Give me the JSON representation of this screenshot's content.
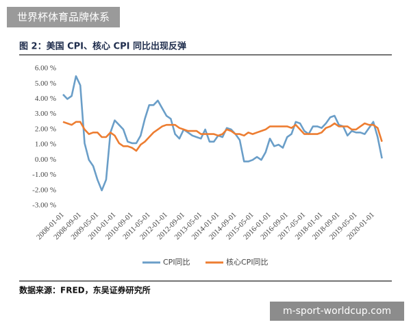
{
  "banner": "世界杯体育品牌体系",
  "watermark": "m-sport-worldcup.com",
  "chart_data": {
    "type": "line",
    "title": "图 2：美国 CPI、核心 CPI 同比出现反弹",
    "source": "数据来源：FRED，东吴证券研究所",
    "categories": [
      "2008-01-01",
      null,
      null,
      null,
      "2008-09-01",
      null,
      null,
      null,
      "2009-05-01",
      null,
      null,
      null,
      "2010-01-01",
      null,
      null,
      null,
      "2010-09-01",
      null,
      null,
      null,
      "2011-05-01",
      null,
      null,
      null,
      "2012-01-01",
      null,
      null,
      null,
      "2012-09-01",
      null,
      null,
      null,
      "2013-05-01",
      null,
      null,
      null,
      "2014-01-01",
      null,
      null,
      null,
      "2014-09-01",
      null,
      null,
      null,
      "2015-05-01",
      null,
      null,
      null,
      "2016-01-01",
      null,
      null,
      null,
      "2016-09-01",
      null,
      null,
      null,
      "2017-05-01",
      null,
      null,
      null,
      "2018-01-01",
      null,
      null,
      null,
      "2018-09-01",
      null,
      null,
      null,
      "2019-05-01",
      null,
      null,
      null,
      "2020-01-01",
      null,
      null
    ],
    "series": [
      {
        "name": "CPI同比",
        "color": "#6a9ec8",
        "values": [
          4.3,
          4.0,
          4.2,
          5.5,
          4.9,
          1.1,
          0.0,
          -0.4,
          -1.3,
          -2.0,
          -1.3,
          1.8,
          2.6,
          2.3,
          2.0,
          1.2,
          1.1,
          1.1,
          1.6,
          2.7,
          3.6,
          3.6,
          3.9,
          3.4,
          2.9,
          2.7,
          1.7,
          1.4,
          2.0,
          1.8,
          1.6,
          1.5,
          1.4,
          2.0,
          1.2,
          1.2,
          1.6,
          1.5,
          2.1,
          2.0,
          1.7,
          1.3,
          -0.1,
          -0.1,
          0.0,
          0.2,
          0.0,
          0.5,
          1.4,
          0.9,
          1.0,
          0.8,
          1.5,
          1.7,
          2.5,
          2.4,
          1.9,
          1.7,
          2.2,
          2.2,
          2.1,
          2.4,
          2.8,
          2.9,
          2.3,
          2.2,
          1.6,
          1.9,
          1.8,
          1.8,
          1.7,
          2.1,
          2.5,
          1.5,
          0.1
        ]
      },
      {
        "name": "核心CPI同比",
        "color": "#ed7d31",
        "values": [
          2.5,
          2.4,
          2.3,
          2.5,
          2.5,
          2.0,
          1.7,
          1.8,
          1.8,
          1.5,
          1.5,
          1.8,
          1.6,
          1.1,
          0.9,
          0.9,
          0.8,
          0.6,
          1.0,
          1.2,
          1.5,
          1.8,
          2.0,
          2.2,
          2.3,
          2.3,
          2.3,
          2.1,
          2.0,
          1.9,
          1.9,
          1.9,
          1.7,
          1.7,
          1.7,
          1.7,
          1.6,
          1.7,
          2.0,
          1.9,
          1.7,
          1.7,
          1.6,
          1.8,
          1.7,
          1.8,
          1.9,
          2.0,
          2.2,
          2.2,
          2.2,
          2.2,
          2.2,
          2.1,
          2.3,
          2.0,
          1.7,
          1.7,
          1.7,
          1.7,
          1.8,
          2.1,
          2.2,
          2.4,
          2.2,
          2.2,
          2.2,
          2.0,
          2.0,
          2.2,
          2.4,
          2.3,
          2.3,
          2.1,
          1.2
        ]
      }
    ],
    "ylim": [
      -3,
      6
    ],
    "yticks": [
      {
        "value": -3,
        "label": "-3.00 %"
      },
      {
        "value": -2,
        "label": "-2.00 %"
      },
      {
        "value": -1,
        "label": "-1.00 %"
      },
      {
        "value": 0,
        "label": "0.00 %"
      },
      {
        "value": 1,
        "label": "1.00 %"
      },
      {
        "value": 2,
        "label": "2.00 %"
      },
      {
        "value": 3,
        "label": "3.00 %"
      },
      {
        "value": 4,
        "label": "4.00 %"
      },
      {
        "value": 5,
        "label": "5.00 %"
      },
      {
        "value": 6,
        "label": "6.00 %"
      }
    ],
    "grid": false,
    "legend": "bottom"
  }
}
